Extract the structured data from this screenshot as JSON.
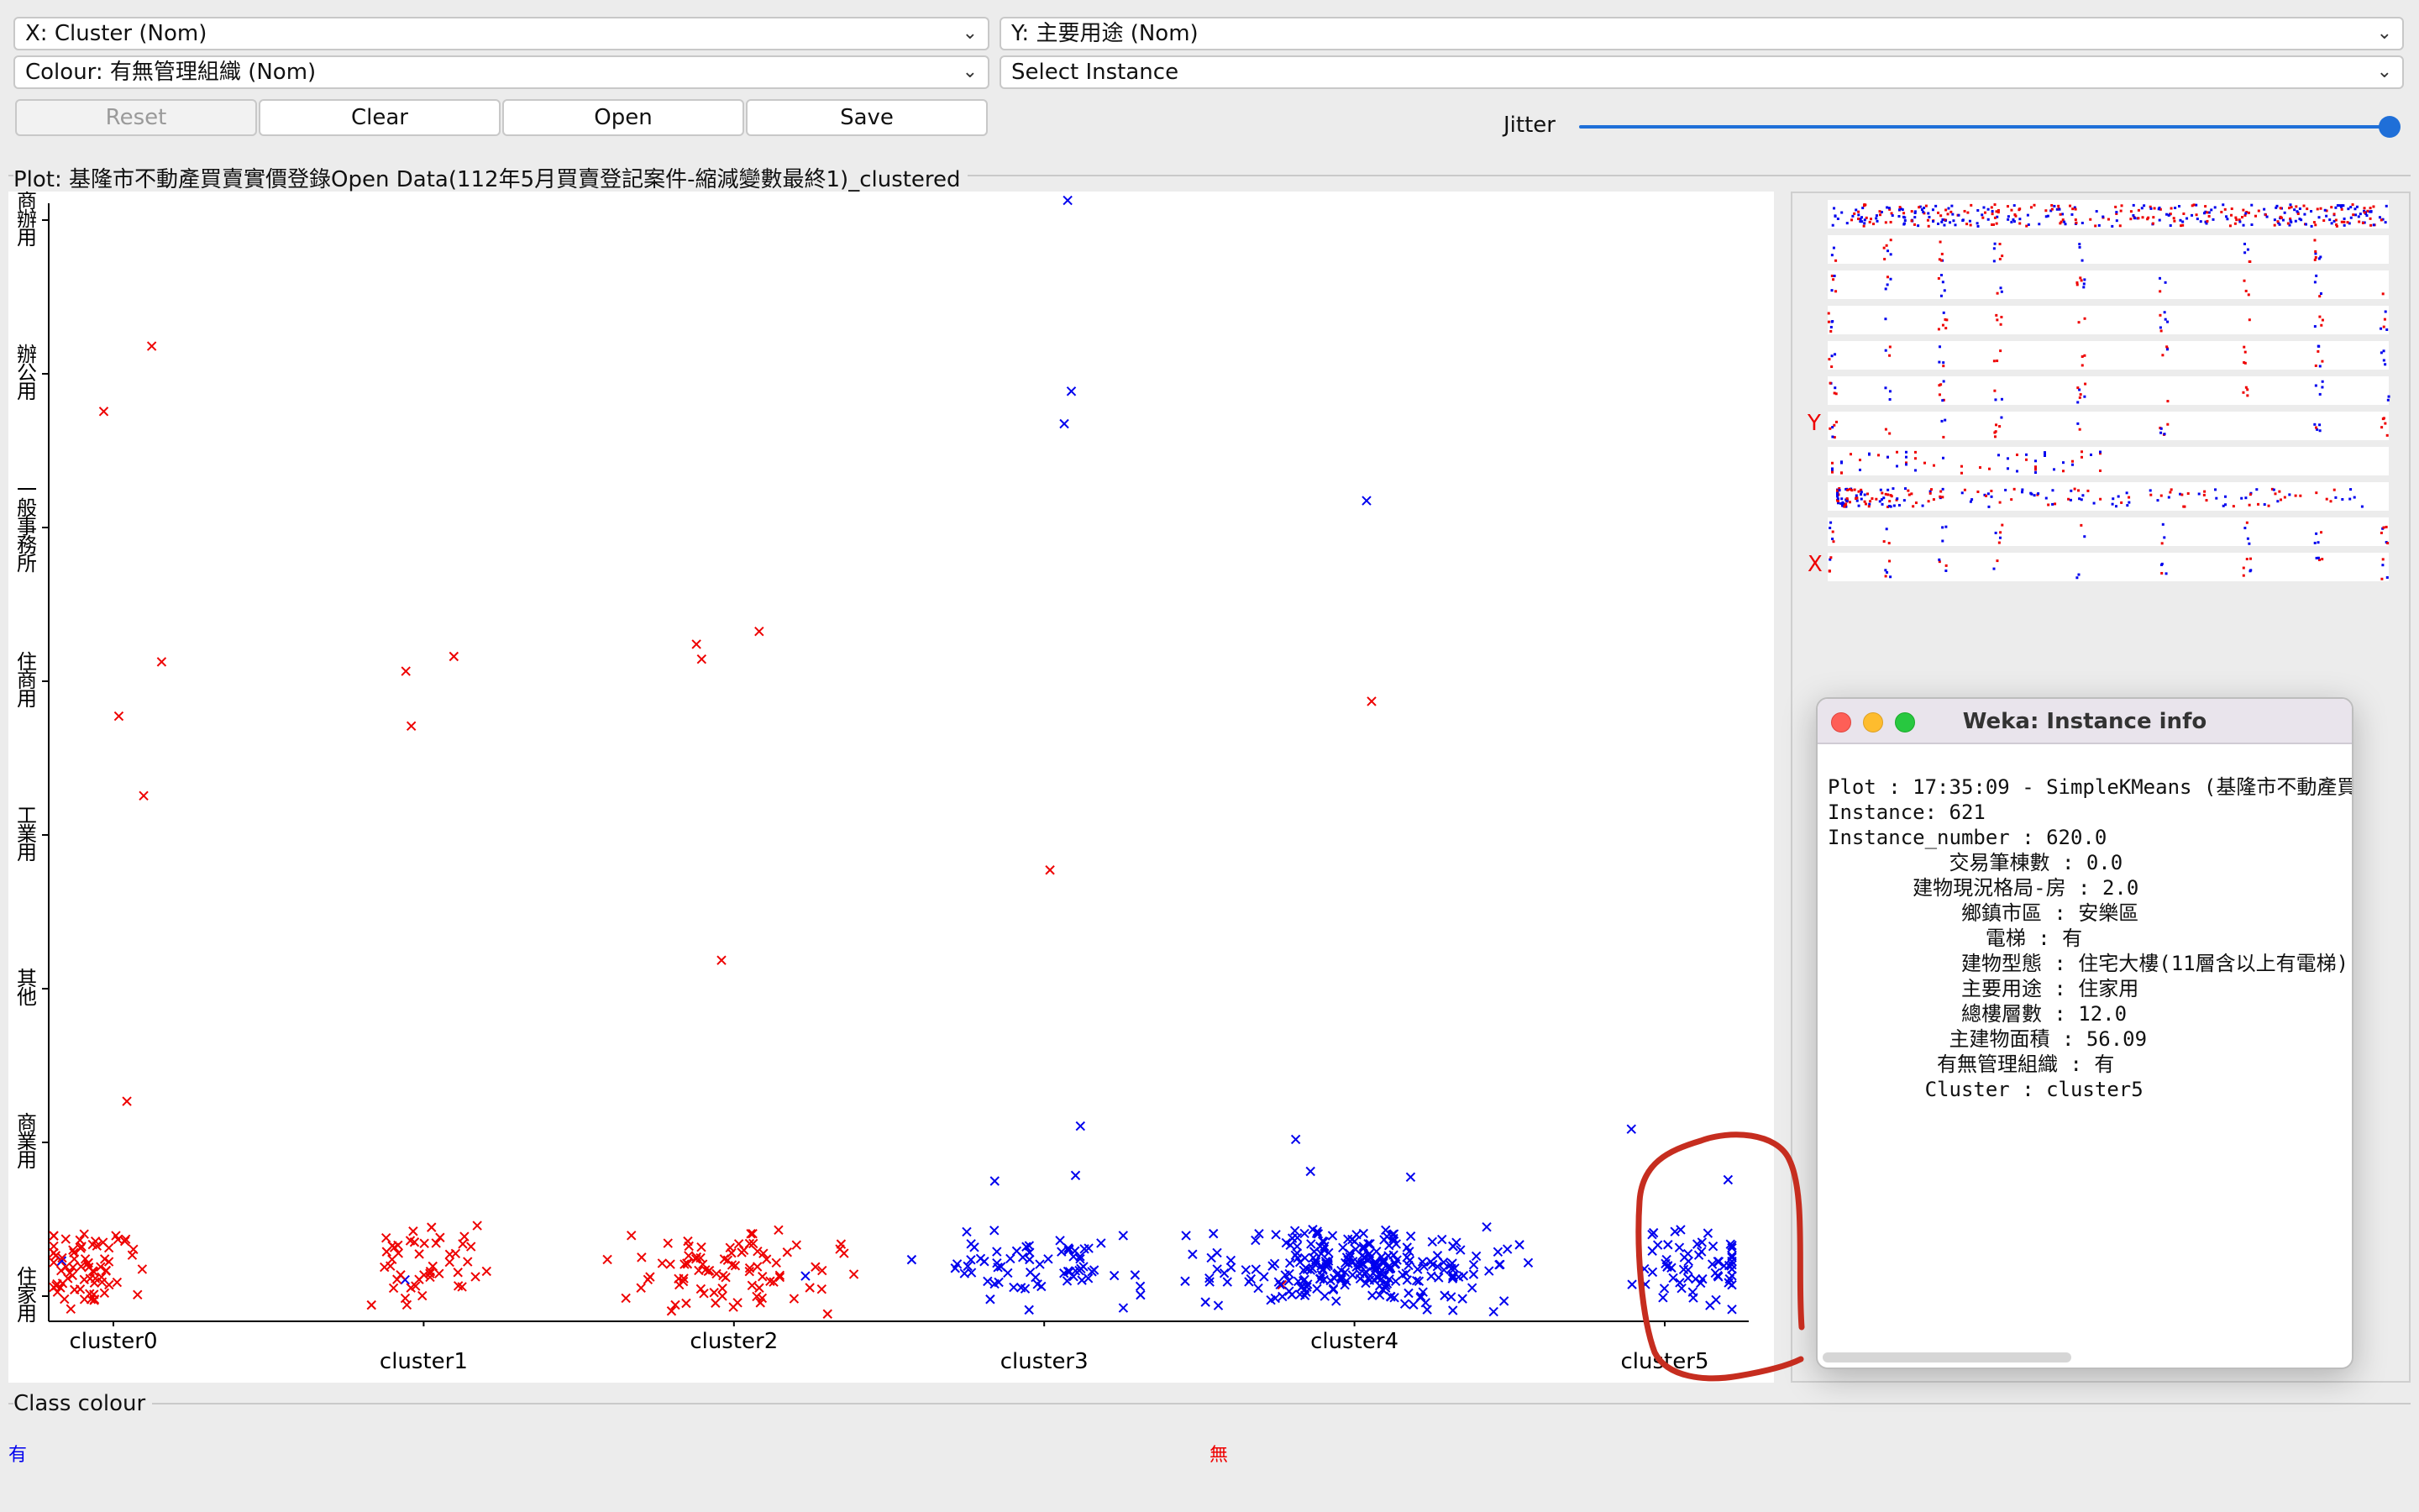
{
  "controls": {
    "x_axis_select": "X: Cluster (Nom)",
    "y_axis_select": "Y: 主要用途 (Nom)",
    "colour_select": "Colour: 有無管理組織 (Nom)",
    "instance_select": "Select Instance",
    "reset_label": "Reset",
    "clear_label": "Clear",
    "open_label": "Open",
    "save_label": "Save",
    "jitter_label": "Jitter",
    "jitter_level": 1.0
  },
  "plot": {
    "title": "Plot: 基隆市不動產買賣實價登錄Open Data(112年5月買賣登記案件-縮減變數最終1)_clustered"
  },
  "chart_data": {
    "type": "scatter",
    "xlabel": "Cluster",
    "ylabel": "主要用途",
    "x_categories": [
      "cluster0",
      "cluster1",
      "cluster2",
      "cluster3",
      "cluster4",
      "cluster5"
    ],
    "y_categories": [
      "住家用",
      "商業用",
      "其他",
      "工業用",
      "住商用",
      "一般事務所",
      "辦公用",
      "商辦用"
    ],
    "series": [
      {
        "name": "有",
        "color": "#0000ee",
        "points": [
          [
            "cluster3",
            "商辦用"
          ],
          [
            "cluster3",
            "辦公用"
          ],
          [
            "cluster3",
            "辦公用"
          ],
          [
            "cluster3",
            "商業用"
          ],
          [
            "cluster3",
            "商業用"
          ],
          [
            "cluster3",
            "商業用"
          ],
          [
            "cluster3",
            "住家用"
          ],
          [
            "cluster4",
            "一般事務所"
          ],
          [
            "cluster4",
            "商業用"
          ],
          [
            "cluster4",
            "商業用"
          ],
          [
            "cluster4",
            "商業用"
          ],
          [
            "cluster4",
            "住家用"
          ],
          [
            "cluster5",
            "商業用"
          ],
          [
            "cluster5",
            "商業用"
          ],
          [
            "cluster5",
            "住家用"
          ],
          [
            "cluster5",
            "住家用"
          ],
          [
            "cluster0",
            "住家用"
          ],
          [
            "cluster1",
            "住家用"
          ],
          [
            "cluster2",
            "住家用"
          ]
        ]
      },
      {
        "name": "無",
        "color": "#ee0000",
        "points": [
          [
            "cluster0",
            "辦公用"
          ],
          [
            "cluster0",
            "辦公用"
          ],
          [
            "cluster0",
            "住商用"
          ],
          [
            "cluster0",
            "住商用"
          ],
          [
            "cluster0",
            "工業用"
          ],
          [
            "cluster0",
            "商業用"
          ],
          [
            "cluster0",
            "住家用"
          ],
          [
            "cluster1",
            "住商用"
          ],
          [
            "cluster1",
            "住商用"
          ],
          [
            "cluster1",
            "住商用"
          ],
          [
            "cluster1",
            "住家用"
          ],
          [
            "cluster2",
            "住商用"
          ],
          [
            "cluster2",
            "住商用"
          ],
          [
            "cluster2",
            "住商用"
          ],
          [
            "cluster2",
            "其他"
          ],
          [
            "cluster2",
            "住家用"
          ],
          [
            "cluster3",
            "工業用"
          ],
          [
            "cluster4",
            "住商用"
          ],
          [
            "cluster4",
            "住家用"
          ]
        ]
      }
    ],
    "legend": [
      "有",
      "無"
    ],
    "grid": false
  },
  "matrix": {
    "y_marker": "Y",
    "x_marker": "X"
  },
  "class_colour": {
    "title": "Class colour",
    "items": [
      {
        "label": "有",
        "color": "#0000ee"
      },
      {
        "label": "無",
        "color": "#ee0000"
      }
    ]
  },
  "info_window": {
    "title": "Weka: Instance info",
    "lines": [
      "Plot : 17:35:09 - SimpleKMeans (基隆市不動產買賣",
      "Instance: 621",
      "Instance_number : 620.0",
      "          交易筆棟數 : 0.0",
      "       建物現況格局-房 : 2.0",
      "           鄉鎮市區 : 安樂區",
      "             電梯 : 有",
      "           建物型態 : 住宅大樓(11層含以上有電梯)",
      "           主要用途 : 住家用",
      "           總樓層數 : 12.0",
      "          主建物面積 : 56.09",
      "         有無管理組織 : 有",
      "        Cluster : cluster5"
    ]
  },
  "annotation": {
    "color": "#c62d1f"
  }
}
